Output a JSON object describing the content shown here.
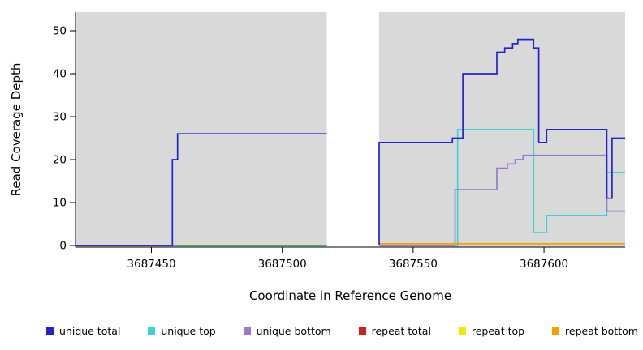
{
  "figure": {
    "xlabel": "Coordinate in Reference Genome",
    "ylabel": "Read Coverage Depth"
  },
  "legend": {
    "items": [
      {
        "label": "unique total",
        "color": "#2323cc"
      },
      {
        "label": "unique top",
        "color": "#3ed3d3"
      },
      {
        "label": "unique bottom",
        "color": "#9a77d1"
      },
      {
        "label": "repeat total",
        "color": "#cc2222"
      },
      {
        "label": "repeat top",
        "color": "#f0e800"
      },
      {
        "label": "repeat bottom",
        "color": "#ff9d00"
      }
    ]
  },
  "chart_data": {
    "type": "line",
    "step": true,
    "title": "",
    "xlabel": "Coordinate in Reference Genome",
    "ylabel": "Read Coverage Depth",
    "xlim": [
      3687421,
      3687631
    ],
    "ylim": [
      0,
      54
    ],
    "xticks": [
      3687450,
      3687500,
      3687550,
      3687600
    ],
    "yticks": [
      0,
      10,
      20,
      30,
      40,
      50
    ],
    "grid": false,
    "legend_position": "bottom",
    "plot_bg": "#d9d9d9",
    "gap_region": {
      "x1": 3687517,
      "x2": 3687537
    },
    "zero_overlap_segment": {
      "x1": 3687459,
      "x2": 3687517,
      "y": 0,
      "color": "#3cb043"
    },
    "series": [
      {
        "name": "repeat top",
        "color": "#f0e800",
        "segments": []
      },
      {
        "name": "repeat total",
        "color": "#cc2222",
        "segments": []
      },
      {
        "name": "unique top",
        "color": "#3ed3d3",
        "segments": [
          [
            [
              3687421,
              0
            ],
            [
              3687517,
              0
            ]
          ],
          [
            [
              3687537,
              0
            ],
            [
              3687567,
              0
            ],
            [
              3687567,
              27
            ],
            [
              3687596,
              27
            ],
            [
              3687596,
              3
            ],
            [
              3687601,
              3
            ],
            [
              3687601,
              7
            ],
            [
              3687624,
              7
            ],
            [
              3687624,
              17
            ],
            [
              3687631,
              17
            ]
          ]
        ]
      },
      {
        "name": "unique bottom",
        "color": "#9a77d1",
        "segments": [
          [
            [
              3687421,
              0
            ],
            [
              3687517,
              0
            ]
          ],
          [
            [
              3687537,
              0
            ],
            [
              3687566,
              0
            ],
            [
              3687566,
              13
            ],
            [
              3687582,
              13
            ],
            [
              3687582,
              18
            ],
            [
              3687586,
              18
            ],
            [
              3687586,
              19
            ],
            [
              3687589,
              19
            ],
            [
              3687589,
              20
            ],
            [
              3687592,
              20
            ],
            [
              3687592,
              21
            ],
            [
              3687624,
              21
            ],
            [
              3687624,
              8
            ],
            [
              3687631,
              8
            ]
          ]
        ]
      },
      {
        "name": "repeat bottom",
        "color": "#ff9d00",
        "segments": [
          [
            [
              3687537,
              0.4
            ],
            [
              3687631,
              0.4
            ]
          ]
        ]
      },
      {
        "name": "unique total",
        "color": "#2323cc",
        "segments": [
          [
            [
              3687421,
              0
            ],
            [
              3687458,
              0
            ],
            [
              3687458,
              20
            ],
            [
              3687460,
              20
            ],
            [
              3687460,
              26
            ],
            [
              3687517,
              26
            ]
          ],
          [
            [
              3687537,
              0
            ],
            [
              3687537,
              24
            ],
            [
              3687565,
              24
            ],
            [
              3687565,
              25
            ],
            [
              3687569,
              25
            ],
            [
              3687569,
              40
            ],
            [
              3687582,
              40
            ],
            [
              3687582,
              45
            ],
            [
              3687585,
              45
            ],
            [
              3687585,
              46
            ],
            [
              3687588,
              46
            ],
            [
              3687588,
              47
            ],
            [
              3687590,
              47
            ],
            [
              3687590,
              48
            ],
            [
              3687596,
              48
            ],
            [
              3687596,
              46
            ],
            [
              3687598,
              46
            ],
            [
              3687598,
              24
            ],
            [
              3687601,
              24
            ],
            [
              3687601,
              27
            ],
            [
              3687624,
              27
            ],
            [
              3687624,
              11
            ],
            [
              3687626,
              11
            ],
            [
              3687626,
              25
            ],
            [
              3687631,
              25
            ]
          ]
        ]
      }
    ]
  }
}
